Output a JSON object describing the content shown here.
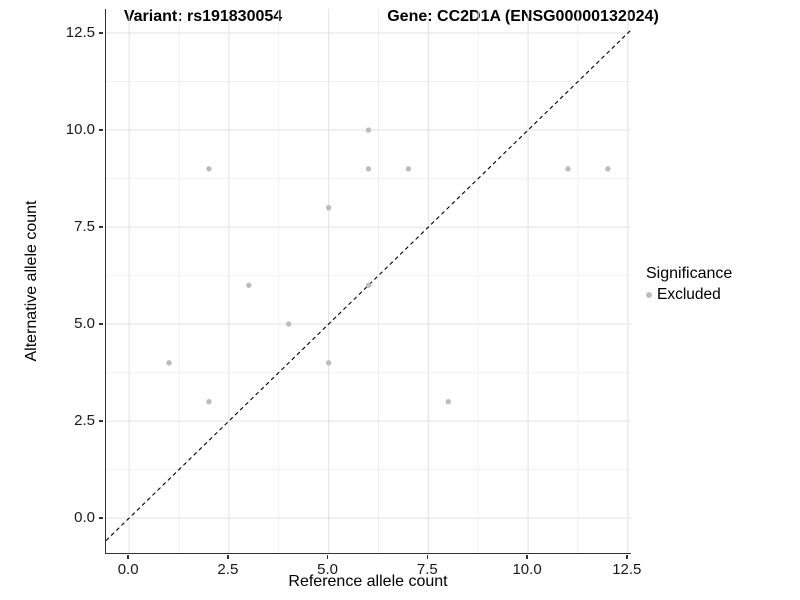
{
  "title": {
    "variant": "Variant: rs191830054",
    "gene": "Gene: CC2D1A (ENSG00000132024)"
  },
  "chart_data": {
    "type": "scatter",
    "title": "Variant: rs191830054    Gene: CC2D1A (ENSG00000132024)",
    "xlabel": "Reference allele count",
    "ylabel": "Alternative allele count",
    "xlim": [
      -0.58,
      12.58
    ],
    "ylim": [
      -0.9,
      13.12
    ],
    "x_ticks": {
      "values": [
        0,
        2.5,
        5,
        7.5,
        10,
        12.5
      ],
      "labels": [
        "0.0",
        "2.5",
        "5.0",
        "7.5",
        "10.0",
        "12.5"
      ]
    },
    "y_ticks": {
      "values": [
        0,
        2.5,
        5,
        7.5,
        10,
        12.5
      ],
      "labels": [
        "0.0",
        "2.5",
        "5.0",
        "7.5",
        "10.0",
        "12.5"
      ]
    },
    "grid": true,
    "series": [
      {
        "name": "Excluded",
        "color": "#bcbcbc",
        "points": [
          [
            1,
            4
          ],
          [
            2,
            3
          ],
          [
            2,
            9
          ],
          [
            3,
            6
          ],
          [
            4,
            5
          ],
          [
            5,
            4
          ],
          [
            5,
            8
          ],
          [
            6,
            6
          ],
          [
            6,
            9
          ],
          [
            6,
            10
          ],
          [
            7,
            9
          ],
          [
            8,
            3
          ],
          [
            11,
            9
          ],
          [
            12,
            9
          ]
        ]
      }
    ],
    "reference_line": {
      "kind": "identity",
      "slope": 1,
      "intercept": 0,
      "style": "dashed",
      "color": "#000000"
    },
    "legend": {
      "position": "right",
      "title": "Significance",
      "entries": [
        {
          "label": "Excluded",
          "color": "#bcbcbc"
        }
      ]
    },
    "colors": {
      "grid_major": "#e2e2e2",
      "grid_minor": "#f0f0f0",
      "axis_line": "#333333",
      "point": "#bcbcbc"
    }
  }
}
